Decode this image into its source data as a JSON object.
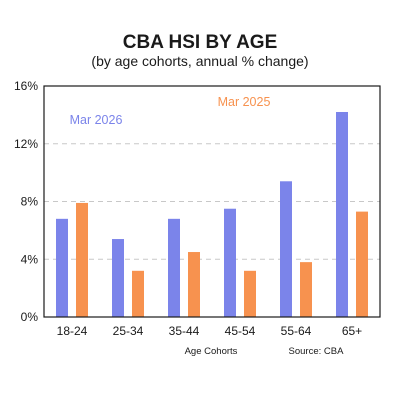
{
  "chart_data": {
    "type": "bar",
    "title": "CBA HSI BY AGE",
    "subtitle": "(by age cohorts, annual % change)",
    "xlabel": "Age Cohorts",
    "ylabel": "",
    "categories": [
      "18-24",
      "25-34",
      "35-44",
      "45-54",
      "55-64",
      "65+"
    ],
    "y_ticks": [
      "0%",
      "4%",
      "8%",
      "12%",
      "16%"
    ],
    "ylim": [
      0,
      16
    ],
    "grid": "horizontal dashed",
    "legend_placement": "inside, labels above bars",
    "series": [
      {
        "name": "Mar 2026",
        "color": "#7b84ea",
        "values": [
          6.8,
          5.4,
          6.8,
          7.5,
          9.4,
          14.2
        ]
      },
      {
        "name": "Mar 2025",
        "color": "#f7924f",
        "values": [
          7.9,
          3.2,
          4.5,
          3.2,
          3.8,
          7.3
        ]
      }
    ],
    "source": "Source: CBA"
  }
}
